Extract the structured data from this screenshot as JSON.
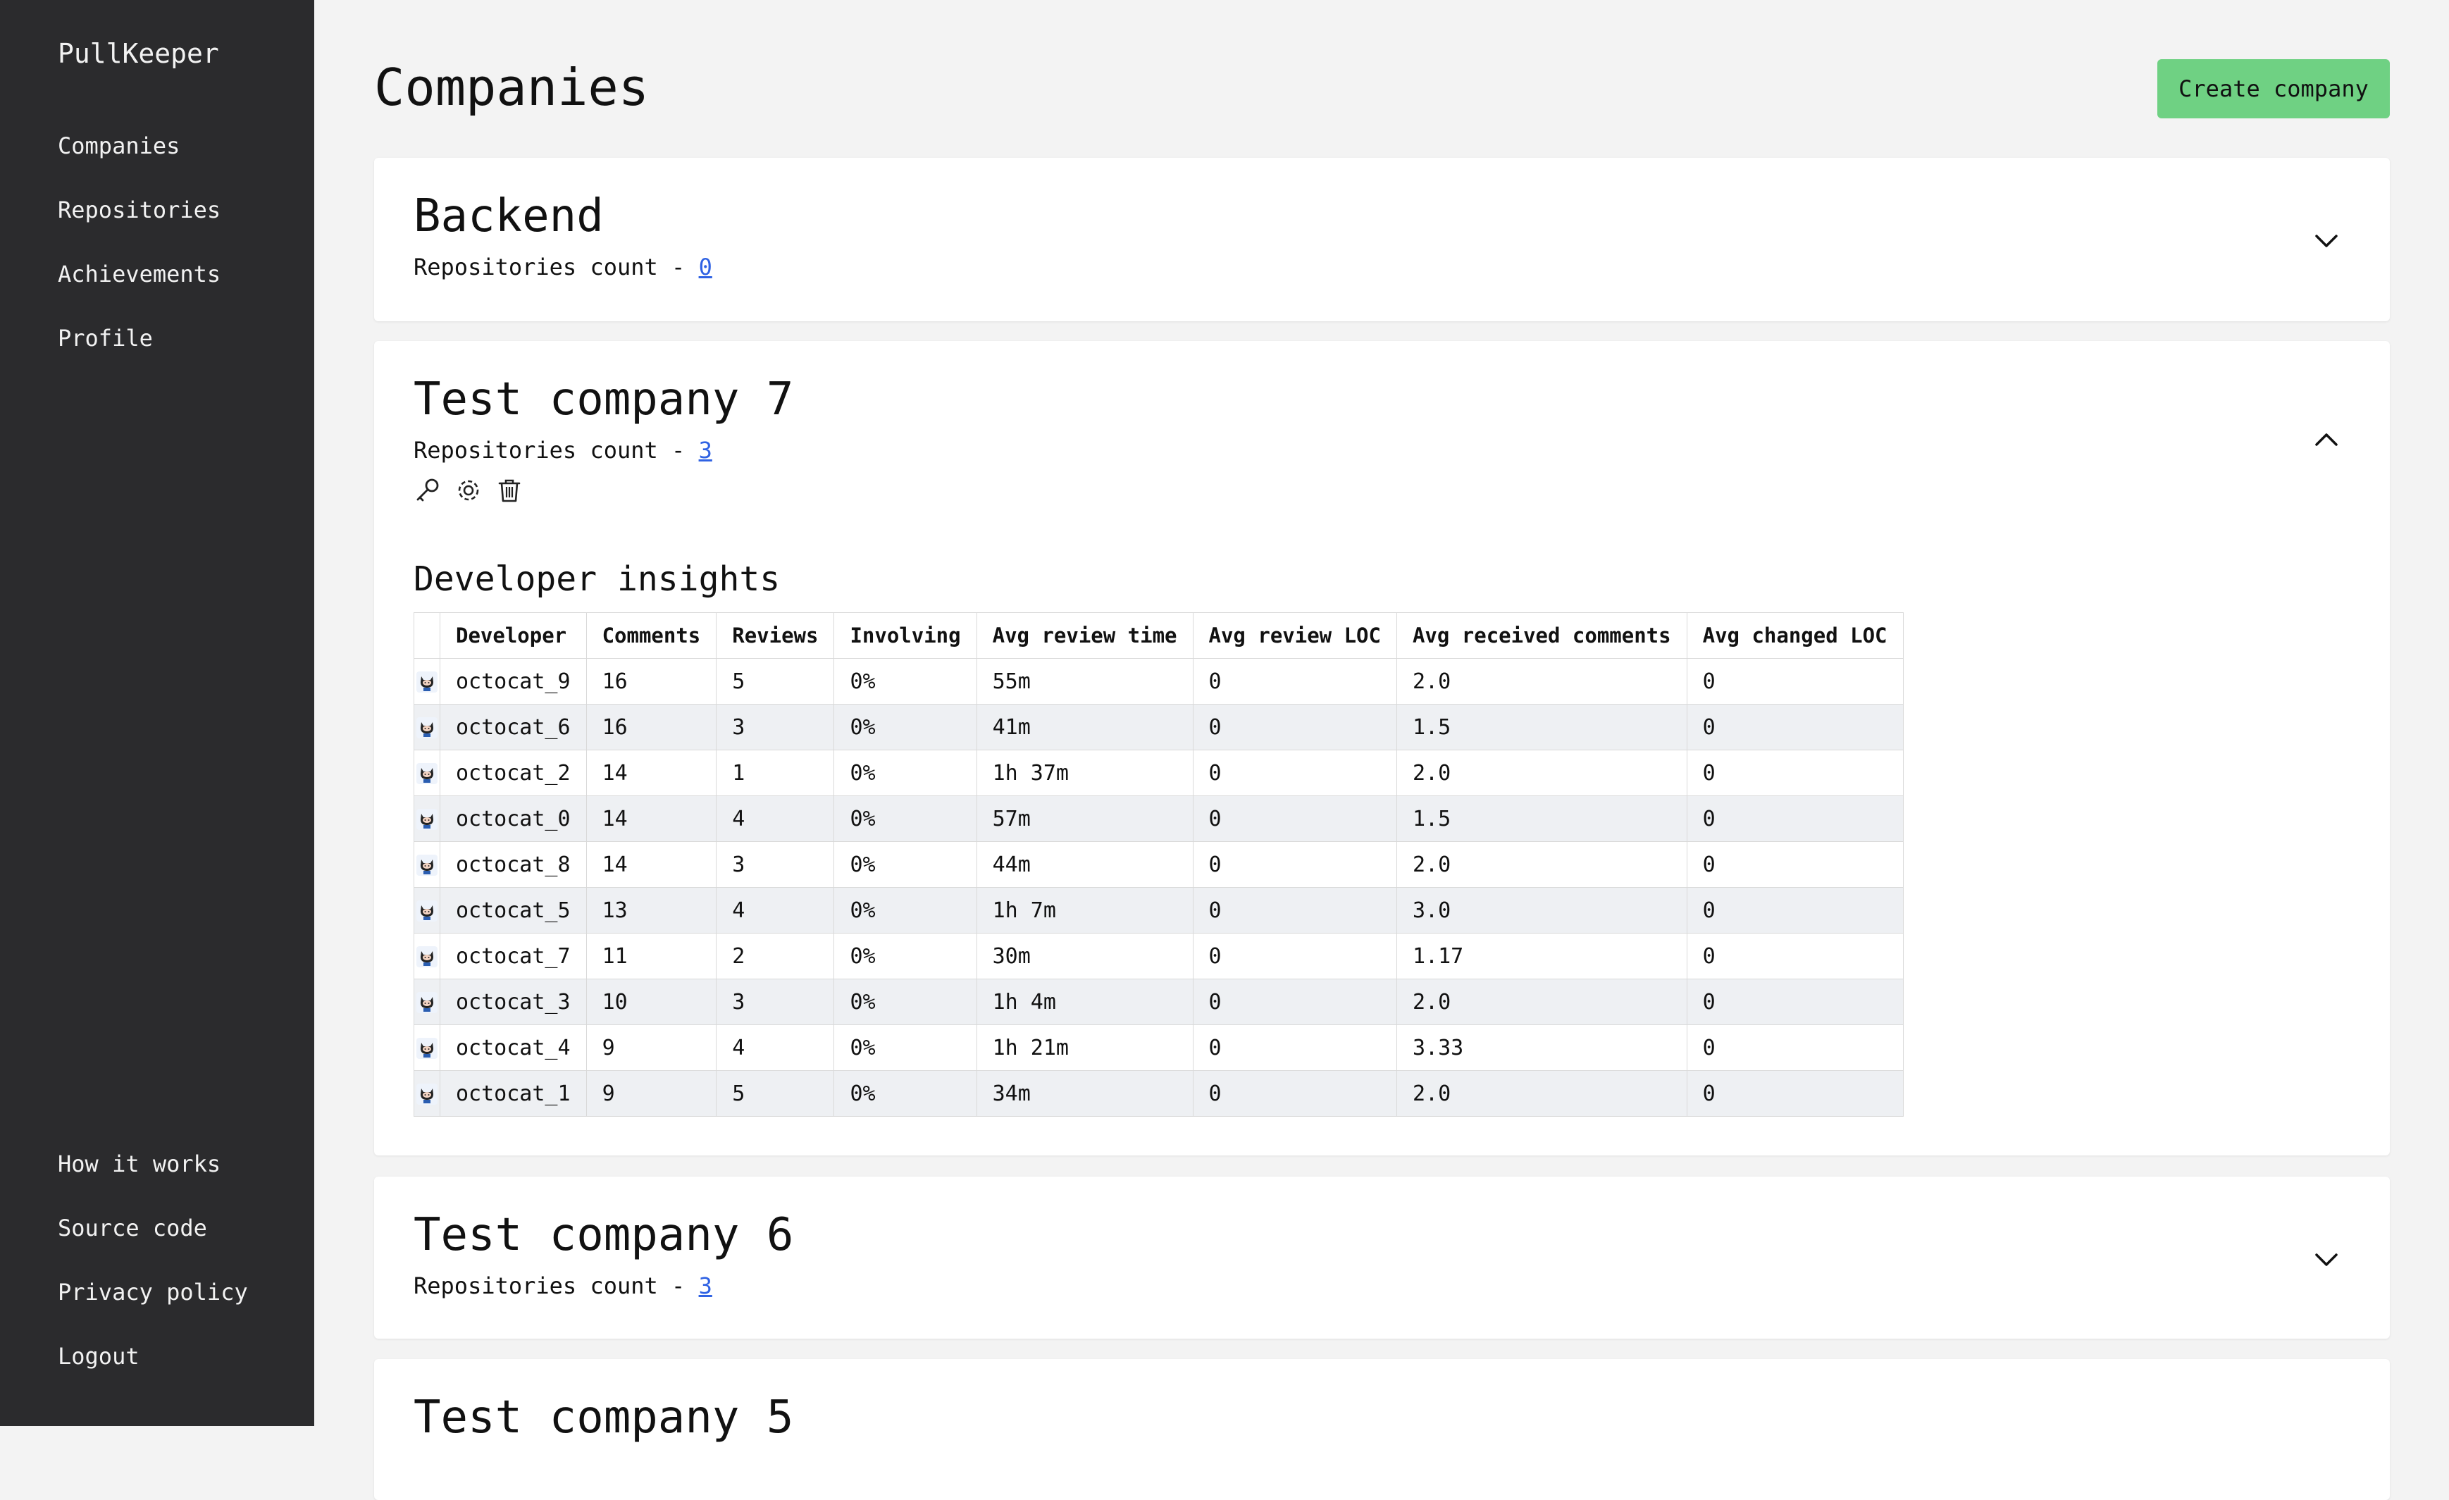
{
  "app": {
    "name": "PullKeeper"
  },
  "sidebar": {
    "top_items": [
      {
        "label": "Companies"
      },
      {
        "label": "Repositories"
      },
      {
        "label": "Achievements"
      },
      {
        "label": "Profile"
      }
    ],
    "bottom_items": [
      {
        "label": "How it works"
      },
      {
        "label": "Source code"
      },
      {
        "label": "Privacy policy"
      },
      {
        "label": "Logout"
      }
    ]
  },
  "header": {
    "title": "Companies",
    "create_label": "Create company"
  },
  "companies": [
    {
      "name": "Backend",
      "count_label": "Repositories count - ",
      "count": "0",
      "expanded": false
    },
    {
      "name": "Test company 7",
      "count_label": "Repositories count - ",
      "count": "3",
      "expanded": true
    },
    {
      "name": "Test company 6",
      "count_label": "Repositories count - ",
      "count": "3",
      "expanded": false
    },
    {
      "name": "Test company 5",
      "expanded": false
    }
  ],
  "insights": {
    "title": "Developer insights",
    "columns": [
      "Developer",
      "Comments",
      "Reviews",
      "Involving",
      "Avg review time",
      "Avg review LOC",
      "Avg received comments",
      "Avg changed LOC"
    ],
    "rows": [
      [
        "octocat_9",
        "16",
        "5",
        "0%",
        "55m",
        "0",
        "2.0",
        "0"
      ],
      [
        "octocat_6",
        "16",
        "3",
        "0%",
        "41m",
        "0",
        "1.5",
        "0"
      ],
      [
        "octocat_2",
        "14",
        "1",
        "0%",
        "1h 37m",
        "0",
        "2.0",
        "0"
      ],
      [
        "octocat_0",
        "14",
        "4",
        "0%",
        "57m",
        "0",
        "1.5",
        "0"
      ],
      [
        "octocat_8",
        "14",
        "3",
        "0%",
        "44m",
        "0",
        "2.0",
        "0"
      ],
      [
        "octocat_5",
        "13",
        "4",
        "0%",
        "1h 7m",
        "0",
        "3.0",
        "0"
      ],
      [
        "octocat_7",
        "11",
        "2",
        "0%",
        "30m",
        "0",
        "1.17",
        "0"
      ],
      [
        "octocat_3",
        "10",
        "3",
        "0%",
        "1h 4m",
        "0",
        "2.0",
        "0"
      ],
      [
        "octocat_4",
        "9",
        "4",
        "0%",
        "1h 21m",
        "0",
        "3.33",
        "0"
      ],
      [
        "octocat_1",
        "9",
        "5",
        "0%",
        "34m",
        "0",
        "2.0",
        "0"
      ]
    ]
  },
  "colors": {
    "sidebar_bg": "#2b2b2d",
    "accent_green": "#6fd183",
    "link_blue": "#2f62e3"
  }
}
